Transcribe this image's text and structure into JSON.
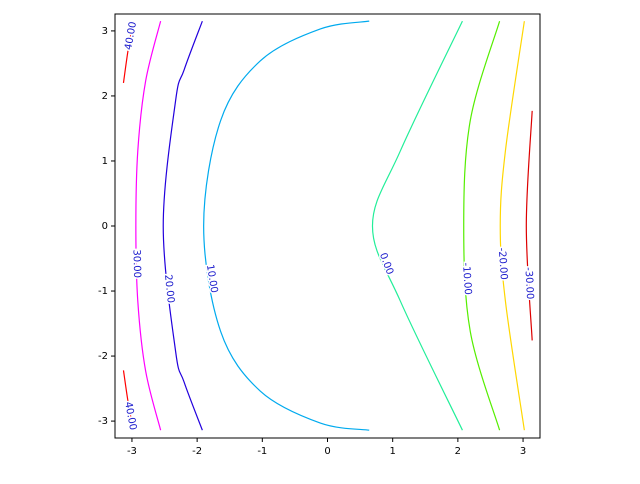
{
  "chart_data": {
    "type": "contour",
    "xlim": [
      -3.26,
      3.26
    ],
    "ylim": [
      -3.26,
      3.26
    ],
    "xticks": [
      -3,
      -2,
      -1,
      0,
      1,
      2,
      3
    ],
    "yticks": [
      -3,
      -2,
      -1,
      0,
      1,
      2,
      3
    ],
    "contours": [
      {
        "level": 40,
        "label": "40.00",
        "color": "#ff0000",
        "x": [
          -3.13,
          -3.06,
          -2.98
        ],
        "y": [
          2.2,
          2.7,
          3.15
        ]
      },
      {
        "level": 40,
        "label": "40.00",
        "color": "#ff0000",
        "x": [
          -3.13,
          -3.06,
          -2.98
        ],
        "y": [
          -2.22,
          -2.7,
          -3.14
        ]
      },
      {
        "level": 30,
        "label": "30.00",
        "color": "#ff00ff",
        "x": [
          -2.56,
          -2.79,
          -2.91,
          -2.94,
          -2.91,
          -2.79,
          -2.56
        ],
        "y": [
          3.15,
          2.23,
          1.16,
          0,
          -1.16,
          -2.23,
          -3.14
        ]
      },
      {
        "level": 20,
        "label": "20.00",
        "color": "#2200dd",
        "x": [
          -1.92,
          -2.2,
          -2.33,
          -2.52,
          -2.33,
          -2.2,
          -1.92
        ],
        "y": [
          3.15,
          2.4,
          1.93,
          0,
          -1.93,
          -2.4,
          -3.14
        ]
      },
      {
        "level": 10,
        "label": "10.00",
        "color": "#00aaee",
        "x": [
          0.64,
          -0.11,
          -1.03,
          -1.64,
          -1.9,
          -1.64,
          -1.03,
          -0.11,
          0.64
        ],
        "y": [
          3.15,
          3.03,
          2.54,
          1.62,
          0,
          -1.62,
          -2.54,
          -3.03,
          -3.14
        ]
      },
      {
        "level": 0,
        "label": "0.00",
        "color": "#22ee99",
        "x": [
          2.07,
          1.12,
          0.69,
          1.12,
          2.07
        ],
        "y": [
          3.15,
          1.16,
          0,
          -1.16,
          -3.14
        ]
      },
      {
        "level": -10,
        "label": "-10.00",
        "color": "#55ee00",
        "x": [
          2.64,
          2.19,
          2.09,
          2.19,
          2.64
        ],
        "y": [
          3.15,
          1.62,
          0,
          -1.62,
          -3.14
        ]
      },
      {
        "level": -20,
        "label": "-20.00",
        "color": "#ffd700",
        "x": [
          3.02,
          2.73,
          2.65,
          2.73,
          3.02
        ],
        "y": [
          3.15,
          1.16,
          0,
          -1.16,
          -3.14
        ]
      },
      {
        "level": -30,
        "label": "-30.00",
        "color": "#dd0000",
        "x": [
          3.14,
          3.05,
          3.14
        ],
        "y": [
          1.77,
          0,
          -1.76
        ]
      }
    ]
  }
}
